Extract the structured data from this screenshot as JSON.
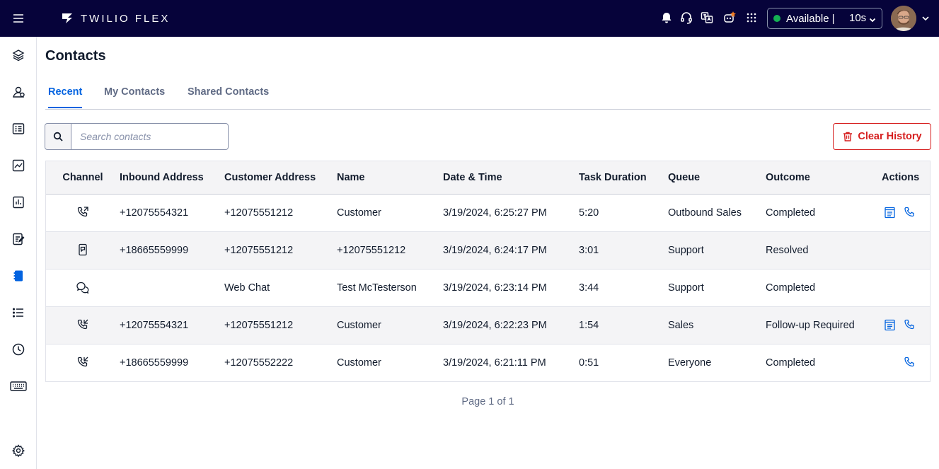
{
  "app": {
    "brand": "TWILIO FLEX"
  },
  "status": {
    "label": "Available",
    "separator": "|",
    "timer": "10s",
    "color": "#14b053"
  },
  "colors": {
    "topbar": "#06033a",
    "accent": "#0263e0",
    "danger": "#d61f1f"
  },
  "page": {
    "title": "Contacts"
  },
  "tabs": [
    {
      "label": "Recent",
      "active": true
    },
    {
      "label": "My Contacts",
      "active": false
    },
    {
      "label": "Shared Contacts",
      "active": false
    }
  ],
  "search": {
    "placeholder": "Search contacts",
    "value": ""
  },
  "clear_history": {
    "label": "Clear History"
  },
  "table": {
    "headers": {
      "channel": "Channel",
      "inbound": "Inbound Address",
      "customer": "Customer Address",
      "name": "Name",
      "date": "Date & Time",
      "duration": "Task Duration",
      "queue": "Queue",
      "outcome": "Outcome",
      "actions": "Actions"
    },
    "rows": [
      {
        "channel_icon": "phone-outgoing-icon",
        "inbound": "+12075554321",
        "customer": "+12075551212",
        "name": "Customer",
        "date": "3/19/2024, 6:25:27 PM",
        "duration": "5:20",
        "queue": "Outbound Sales",
        "outcome": "Completed",
        "actions": [
          "notes-icon",
          "phone-icon"
        ]
      },
      {
        "channel_icon": "sms-icon",
        "inbound": "+18665559999",
        "customer": "+12075551212",
        "name": "+12075551212",
        "date": "3/19/2024, 6:24:17 PM",
        "duration": "3:01",
        "queue": "Support",
        "outcome": "Resolved",
        "actions": []
      },
      {
        "channel_icon": "chat-icon",
        "inbound": "",
        "customer": "Web Chat",
        "name": "Test McTesterson",
        "date": "3/19/2024, 6:23:14 PM",
        "duration": "3:44",
        "queue": "Support",
        "outcome": "Completed",
        "actions": []
      },
      {
        "channel_icon": "phone-incoming-icon",
        "inbound": "+12075554321",
        "customer": "+12075551212",
        "name": "Customer",
        "date": "3/19/2024, 6:22:23 PM",
        "duration": "1:54",
        "queue": "Sales",
        "outcome": "Follow-up Required",
        "actions": [
          "notes-icon",
          "phone-icon"
        ]
      },
      {
        "channel_icon": "phone-incoming-icon",
        "inbound": "+18665559999",
        "customer": "+12075552222",
        "name": "Customer",
        "date": "3/19/2024, 6:21:11 PM",
        "duration": "0:51",
        "queue": "Everyone",
        "outcome": "Completed",
        "actions": [
          "phone-icon"
        ]
      }
    ]
  },
  "pager": {
    "text": "Page 1 of 1"
  }
}
